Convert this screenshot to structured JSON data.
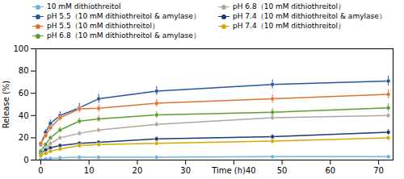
{
  "chart_data": {
    "type": "line",
    "ylabel": "Release (%)",
    "x": [
      0,
      1,
      2,
      4,
      8,
      12,
      24,
      48,
      72
    ],
    "series": [
      {
        "name": "10 mM dithiothreitol",
        "color": "#6CB4E0",
        "values": [
          0.5,
          1.0,
          1.5,
          2.0,
          2.5,
          2.5,
          2.5,
          3.0,
          3.0
        ],
        "errors": [
          0.3,
          0.3,
          0.3,
          0.3,
          0.3,
          0.3,
          0.5,
          0.5,
          0.5
        ]
      },
      {
        "name": "pH 6.8（10 mM dithiothreitol）",
        "color": "#B0A898",
        "values": [
          5.0,
          10.0,
          15.0,
          20.0,
          24.0,
          27.0,
          32.0,
          38.0,
          40.0
        ],
        "errors": [
          1.0,
          1.5,
          1.5,
          2.0,
          2.0,
          2.0,
          2.5,
          2.5,
          2.5
        ]
      },
      {
        "name": "pH 5.5（10 mM dithiothreitol & amylase）",
        "color": "#2155A0",
        "values": [
          14.0,
          25.0,
          33.0,
          40.0,
          47.0,
          55.0,
          62.0,
          68.0,
          71.0
        ],
        "errors": [
          1.5,
          2.5,
          3.0,
          3.5,
          4.0,
          4.0,
          4.0,
          4.0,
          4.5
        ]
      },
      {
        "name": "pH 7.4（10 mM dithiothreitol & amylase）",
        "color": "#1A3B6E",
        "values": [
          6.0,
          9.0,
          11.0,
          13.0,
          15.0,
          16.0,
          19.0,
          21.0,
          25.0
        ],
        "errors": [
          0.8,
          1.0,
          1.2,
          1.5,
          1.5,
          1.5,
          2.0,
          2.0,
          2.5
        ]
      },
      {
        "name": "pH 5.5（10 mM dithiothreitol）",
        "color": "#E07030",
        "values": [
          15.0,
          22.0,
          29.0,
          38.0,
          46.0,
          46.5,
          51.0,
          55.0,
          59.0
        ],
        "errors": [
          1.5,
          2.0,
          2.5,
          3.0,
          3.5,
          3.5,
          3.5,
          4.0,
          4.0
        ]
      },
      {
        "name": "pH 7.4（10 mM dithiothreitol）",
        "color": "#D4A800",
        "values": [
          4.0,
          6.0,
          8.0,
          10.0,
          13.0,
          14.0,
          15.0,
          17.0,
          20.0
        ],
        "errors": [
          0.5,
          0.8,
          1.0,
          1.2,
          1.5,
          1.5,
          1.5,
          1.5,
          2.0
        ]
      },
      {
        "name": "pH 6.8（10 mM dithiothreitol & amylase）",
        "color": "#5A9E30",
        "values": [
          8.0,
          14.0,
          20.0,
          27.0,
          35.0,
          37.0,
          40.5,
          43.0,
          47.0
        ],
        "errors": [
          1.0,
          1.5,
          2.0,
          2.5,
          3.0,
          3.0,
          3.0,
          3.5,
          3.5
        ]
      }
    ],
    "xlim": [
      -1,
      73
    ],
    "xticks": [
      0,
      10,
      20,
      30,
      {
        "value": 40,
        "label": "Time (h)40"
      },
      50,
      60,
      70
    ],
    "ylim": [
      0,
      100
    ],
    "yticks": [
      0,
      20,
      40,
      60,
      80,
      100
    ],
    "marker": "circle",
    "grid": false,
    "legend": "top"
  }
}
